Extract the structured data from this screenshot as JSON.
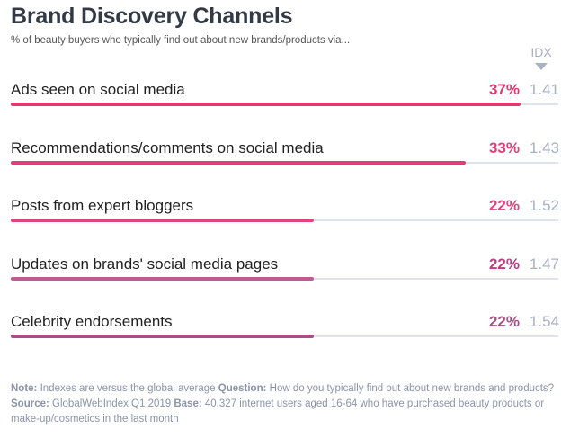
{
  "chart_data": {
    "type": "bar",
    "title": "Brand Discovery Channels",
    "subtitle": "% of beauty buyers who typically find out about new brands/products via...",
    "index_header": "IDX",
    "max_value": 37,
    "categories": [
      "Ads seen on social media",
      "Recommendations/comments on social media",
      "Posts from expert bloggers",
      "Updates on brands' social media pages",
      "Celebrity endorsements"
    ],
    "values": [
      37,
      33,
      22,
      22,
      22
    ],
    "value_labels": [
      "37%",
      "33%",
      "22%",
      "22%",
      "22%"
    ],
    "index_labels": [
      "1.41",
      "1.43",
      "1.52",
      "1.47",
      "1.54"
    ],
    "colors": [
      "#e0396e",
      "#df3f78",
      "#e0447f",
      "#bd5c8e",
      "#a84f86"
    ],
    "pct_colors": [
      "#e0396e",
      "#df3f78",
      "#e0447f",
      "#bd3f82",
      "#a84f86"
    ]
  },
  "note": {
    "note_label": "Note:",
    "note_text": " Indexes are versus the global average ",
    "question_label": "Question:",
    "question_text": " How do you typically find out about new brands and products? ",
    "source_label": "Source:",
    "source_text": " GlobalWebIndex Q1 2019 ",
    "base_label": "Base:",
    "base_text": " 40,327 internet users aged 16-64 who have purchased beauty products or make-up/cosmetics in the last month"
  }
}
